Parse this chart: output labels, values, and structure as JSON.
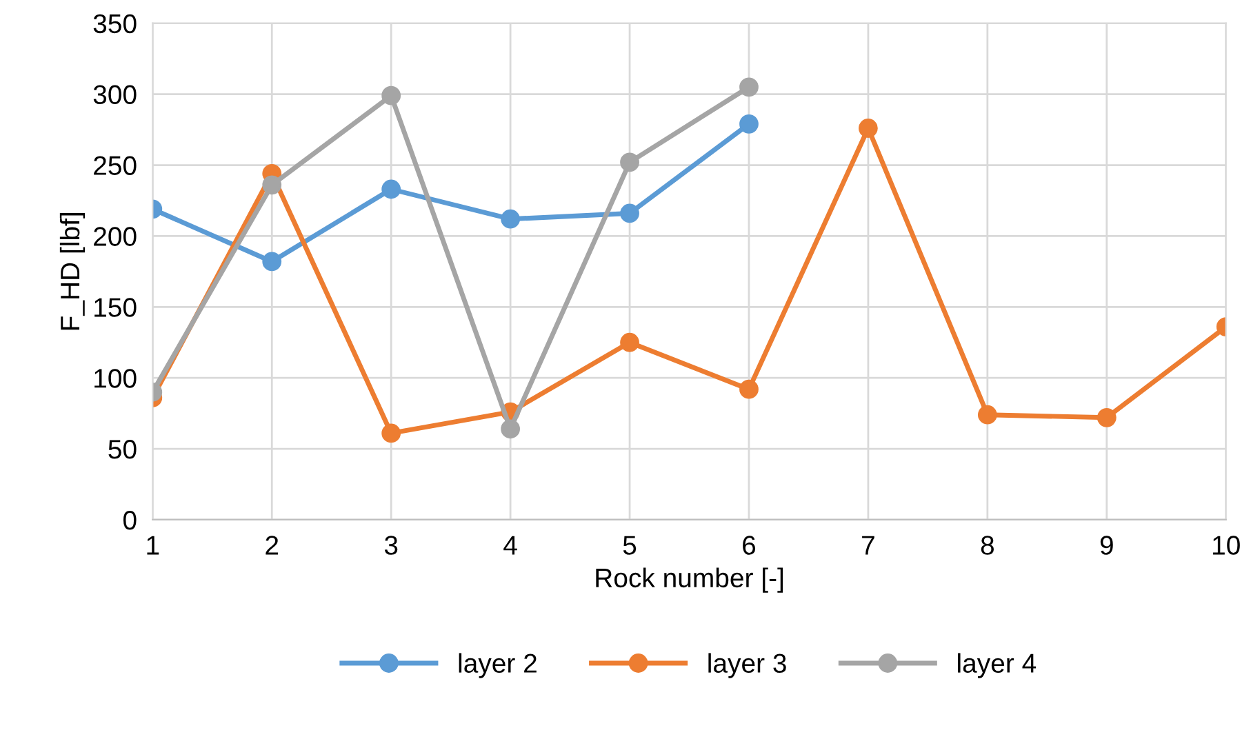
{
  "chart_data": {
    "type": "line",
    "xlabel": "Rock number [-]",
    "ylabel": "F_HD [lbf]",
    "x": [
      1,
      2,
      3,
      4,
      5,
      6,
      7,
      8,
      9,
      10
    ],
    "series": [
      {
        "name": "layer 2",
        "color": "#5b9bd5",
        "values": [
          219,
          182,
          233,
          212,
          216,
          279,
          null,
          null,
          null,
          null
        ]
      },
      {
        "name": "layer 3",
        "color": "#ed7d31",
        "values": [
          86,
          244,
          61,
          76,
          125,
          92,
          276,
          74,
          72,
          136
        ]
      },
      {
        "name": "layer 4",
        "color": "#a5a5a5",
        "values": [
          90,
          236,
          299,
          64,
          252,
          305,
          null,
          null,
          null,
          null
        ]
      }
    ],
    "xlim": [
      1,
      10
    ],
    "xticks": [
      1,
      2,
      3,
      4,
      5,
      6,
      7,
      8,
      9,
      10
    ],
    "ylim": [
      0,
      350
    ],
    "yticks": [
      0,
      50,
      100,
      150,
      200,
      250,
      300,
      350
    ],
    "grid": true,
    "legend": "bottom",
    "marker": "circle",
    "line_style": "solid"
  }
}
